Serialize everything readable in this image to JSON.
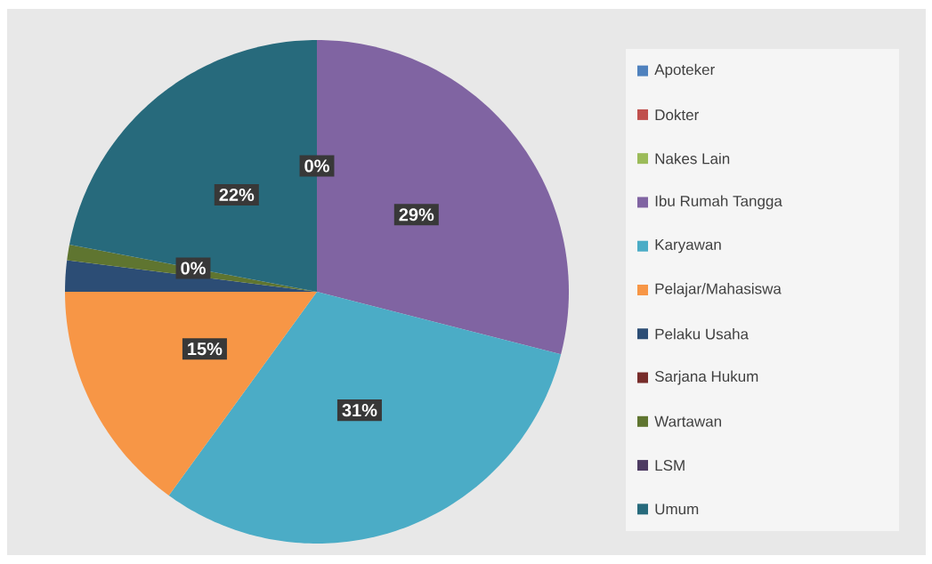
{
  "chart_data": {
    "type": "pie",
    "categories": [
      "Apoteker",
      "Dokter",
      "Nakes Lain",
      "Ibu Rumah Tangga",
      "Karyawan",
      "Pelajar/Mahasiswa",
      "Pelaku Usaha",
      "Sarjana Hukum",
      "Wartawan",
      "LSM",
      "Umum"
    ],
    "values": [
      0,
      0,
      0,
      29,
      31,
      15,
      2,
      0,
      1,
      0,
      22
    ],
    "colors": [
      "#4f81bd",
      "#c0504d",
      "#9bbb59",
      "#8064a2",
      "#4bacc6",
      "#f79646",
      "#2c4d75",
      "#772c2a",
      "#5f7530",
      "#4d3b62",
      "#276a7c"
    ],
    "value_labels": [
      "0%",
      null,
      null,
      "29%",
      "31%",
      "15%",
      null,
      null,
      null,
      "0%",
      "22%"
    ],
    "legend": "right"
  }
}
